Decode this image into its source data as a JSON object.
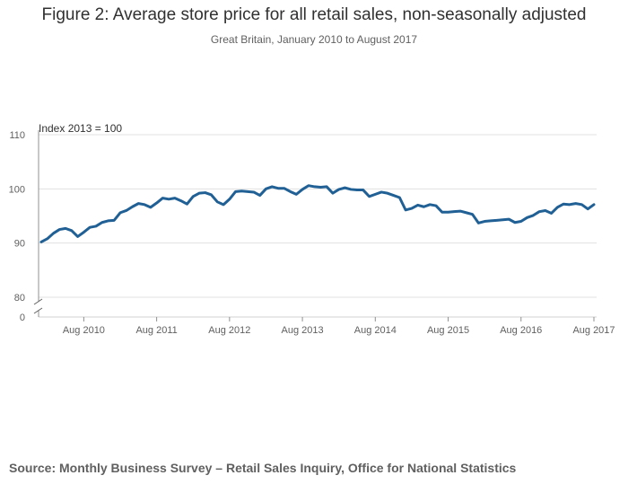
{
  "chart_data": {
    "type": "line",
    "title": "Figure 2: Average store price for all retail sales, non-seasonally adjusted",
    "subtitle": "Great Britain, January 2010 to August 2017",
    "ylabel": "Index 2013 = 100",
    "xlabel": "",
    "ylim": [
      80,
      110
    ],
    "yticks": [
      80,
      90,
      100,
      110
    ],
    "axis_break": true,
    "axis_break_label": "0",
    "x_tick_labels": [
      "Aug 2010",
      "Aug 2011",
      "Aug 2012",
      "Aug 2013",
      "Aug 2014",
      "Aug 2015",
      "Aug 2016",
      "Aug 2017"
    ],
    "x_tick_indices": [
      7,
      19,
      31,
      43,
      55,
      67,
      79,
      91
    ],
    "series": [
      {
        "name": "Average store price",
        "color": "#206095",
        "start": "Jan 2010",
        "values": [
          90.2,
          90.8,
          91.8,
          92.5,
          92.7,
          92.3,
          91.2,
          92.0,
          92.9,
          93.1,
          93.8,
          94.1,
          94.2,
          95.6,
          96.0,
          96.7,
          97.3,
          97.1,
          96.6,
          97.4,
          98.3,
          98.1,
          98.3,
          97.8,
          97.2,
          98.6,
          99.2,
          99.3,
          98.9,
          97.6,
          97.1,
          98.1,
          99.5,
          99.6,
          99.5,
          99.4,
          98.8,
          100.0,
          100.4,
          100.1,
          100.1,
          99.5,
          99.0,
          99.9,
          100.6,
          100.4,
          100.3,
          100.4,
          99.2,
          99.9,
          100.2,
          99.9,
          99.8,
          99.8,
          98.6,
          99.0,
          99.4,
          99.2,
          98.8,
          98.4,
          96.1,
          96.4,
          97.0,
          96.7,
          97.1,
          96.9,
          95.7,
          95.7,
          95.8,
          95.9,
          95.6,
          95.3,
          93.7,
          94.0,
          94.1,
          94.2,
          94.3,
          94.4,
          93.8,
          94.0,
          94.7,
          95.1,
          95.8,
          96.0,
          95.5,
          96.6,
          97.2,
          97.1,
          97.3,
          97.1,
          96.3,
          97.1
        ]
      }
    ],
    "source": "Source: Monthly Business Survey – Retail Sales Inquiry, Office for National Statistics"
  }
}
